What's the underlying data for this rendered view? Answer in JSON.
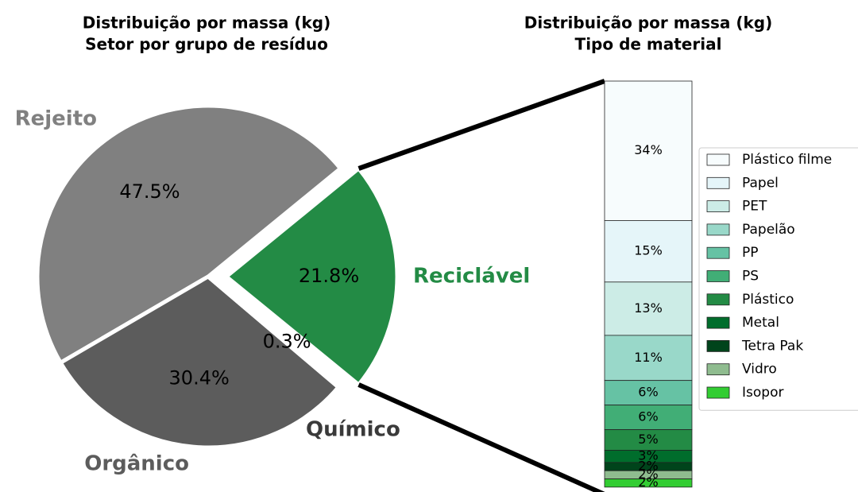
{
  "chart_data": [
    {
      "type": "pie",
      "title": "Distribuição por massa (kg)",
      "subtitle": "Setor por grupo de resíduo",
      "categories": [
        "Rejeito",
        "Orgânico",
        "Químico",
        "Reciclável"
      ],
      "values": [
        47.5,
        30.4,
        0.3,
        21.8
      ],
      "value_labels": [
        "47.5%",
        "30.4%",
        "0.3%",
        "21.8%"
      ],
      "colors": [
        "#808080",
        "#5c5c5c",
        "#3a3a3a",
        "#238b45"
      ],
      "explode": "Reciclável"
    },
    {
      "type": "stacked_bar",
      "title": "Distribuição por massa (kg)",
      "subtitle": "Tipo de material",
      "ylim": [
        0,
        100
      ],
      "legend": "right",
      "series": [
        {
          "name": "Plástico filme",
          "color": "#f7fcfd",
          "values": [
            34
          ],
          "value_labels": [
            "34%"
          ]
        },
        {
          "name": "Papel",
          "color": "#e5f5f9",
          "values": [
            15
          ],
          "value_labels": [
            "15%"
          ]
        },
        {
          "name": "PET",
          "color": "#ccece6",
          "values": [
            13
          ],
          "value_labels": [
            "13%"
          ]
        },
        {
          "name": "Papelão",
          "color": "#99d8c9",
          "values": [
            11
          ],
          "value_labels": [
            "11%"
          ]
        },
        {
          "name": "PP",
          "color": "#66c2a4",
          "values": [
            6
          ],
          "value_labels": [
            "6%"
          ]
        },
        {
          "name": "PS",
          "color": "#41ae76",
          "values": [
            6
          ],
          "value_labels": [
            "6%"
          ]
        },
        {
          "name": "Plástico",
          "color": "#238b45",
          "values": [
            5
          ],
          "value_labels": [
            "5%"
          ]
        },
        {
          "name": "Metal",
          "color": "#006d2c",
          "values": [
            3
          ],
          "value_labels": [
            "3%"
          ]
        },
        {
          "name": "Tetra Pak",
          "color": "#00441b",
          "values": [
            2
          ],
          "value_labels": [
            "2%"
          ]
        },
        {
          "name": "Vidro",
          "color": "#8fbc8f",
          "values": [
            2
          ],
          "value_labels": [
            "2%"
          ]
        },
        {
          "name": "Isopor",
          "color": "#32cd32",
          "values": [
            2
          ],
          "value_labels": [
            "2%"
          ]
        }
      ]
    }
  ]
}
